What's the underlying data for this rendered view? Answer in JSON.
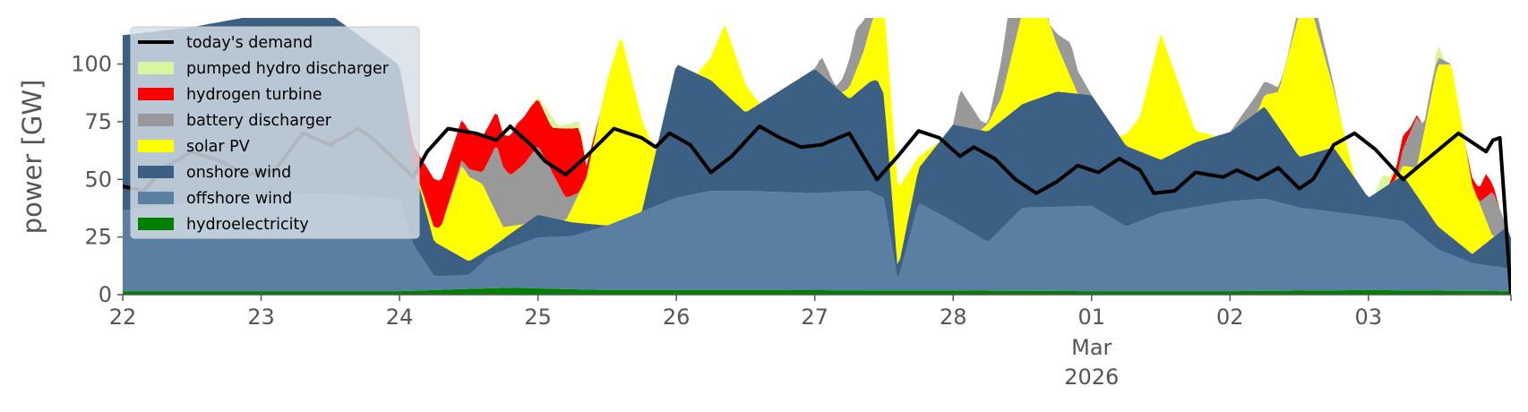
{
  "chart_data": {
    "type": "area",
    "title": "",
    "xlabel": "",
    "ylabel": "power [GW]",
    "ylim": [
      0,
      120
    ],
    "yticks": [
      0,
      25,
      50,
      75,
      100
    ],
    "xlim": [
      0,
      10.03
    ],
    "x_unit": "days from 22 Feb 2026",
    "xticks": [
      {
        "x": 0,
        "label": "22",
        "sub": []
      },
      {
        "x": 1,
        "label": "23",
        "sub": []
      },
      {
        "x": 2,
        "label": "24",
        "sub": []
      },
      {
        "x": 3,
        "label": "25",
        "sub": []
      },
      {
        "x": 4,
        "label": "26",
        "sub": []
      },
      {
        "x": 5,
        "label": "27",
        "sub": []
      },
      {
        "x": 6,
        "label": "28",
        "sub": []
      },
      {
        "x": 7,
        "label": "01",
        "sub": [
          "Mar",
          "2026"
        ]
      },
      {
        "x": 8,
        "label": "02",
        "sub": []
      },
      {
        "x": 9,
        "label": "03",
        "sub": []
      }
    ],
    "grid": false,
    "legend_position": "top-left",
    "stack_order": [
      "hydroelectricity",
      "offshore wind",
      "onshore wind",
      "solar PV",
      "battery discharger",
      "hydrogen turbine",
      "pumped hydro discharger"
    ],
    "series": [
      {
        "name": "hydroelectricity",
        "color": "#008000",
        "x": [
          0,
          2,
          2.5,
          2.8,
          3.5,
          4.5,
          6,
          7,
          8,
          9,
          10,
          10.03
        ],
        "y": [
          1.5,
          1.5,
          2.5,
          3,
          2,
          2,
          1.8,
          1.5,
          1.5,
          2,
          1.5,
          1.5
        ]
      },
      {
        "name": "offshore wind",
        "color": "#5a7fa3",
        "x": [
          0,
          1,
          1.5,
          2,
          2.1,
          2.25,
          2.5,
          2.65,
          3,
          3.25,
          3.5,
          4,
          4.25,
          4.5,
          5,
          5.25,
          5.4,
          5.5,
          5.6,
          5.75,
          6,
          6.25,
          6.5,
          7,
          7.25,
          7.5,
          8,
          8.25,
          8.5,
          9,
          9.25,
          9.5,
          9.75,
          10,
          10.03
        ],
        "y": [
          35,
          42,
          42,
          40,
          20,
          6,
          6,
          14,
          22,
          23,
          28,
          40,
          43,
          43,
          42,
          43,
          43,
          40,
          4,
          38,
          30,
          21,
          36,
          37,
          28,
          34,
          39,
          40,
          36,
          32,
          30,
          18,
          12,
          10,
          10
        ]
      },
      {
        "name": "onshore wind",
        "color": "#3b6084",
        "x": [
          0,
          0.5,
          1,
          1.5,
          2,
          2.1,
          2.25,
          2.5,
          2.65,
          3,
          3.25,
          3.5,
          3.75,
          4,
          4.25,
          4.5,
          5,
          5.25,
          5.45,
          5.5,
          5.6,
          5.75,
          6,
          6.25,
          6.5,
          6.75,
          7,
          7.25,
          7.5,
          7.75,
          8,
          8.25,
          8.5,
          8.75,
          9,
          9.25,
          9.5,
          9.75,
          10,
          10.03
        ],
        "y": [
          76,
          76,
          78,
          78,
          58,
          35,
          15,
          6,
          3,
          10,
          6,
          0,
          0,
          58,
          48,
          34,
          54,
          40,
          50,
          45,
          5,
          15,
          42,
          48,
          45,
          50,
          48,
          35,
          23,
          28,
          30,
          40,
          22,
          28,
          8,
          20,
          10,
          4,
          18,
          13
        ]
      },
      {
        "name": "solar PV",
        "color": "#ffff00",
        "x": [
          0,
          2,
          2.1,
          2.3,
          2.45,
          2.6,
          2.75,
          2.9,
          3,
          3.2,
          3.35,
          3.5,
          3.6,
          3.75,
          3.85,
          4,
          4.15,
          4.25,
          4.35,
          4.6,
          4.8,
          4.9,
          5,
          5.2,
          5.35,
          5.5,
          5.6,
          5.75,
          5.9,
          6,
          6.2,
          6.35,
          6.5,
          6.6,
          6.75,
          6.9,
          7,
          7.2,
          7.35,
          7.5,
          7.6,
          7.75,
          7.9,
          8,
          8.2,
          8.35,
          8.5,
          8.6,
          8.75,
          8.9,
          9,
          9.2,
          9.35,
          9.5,
          9.6,
          9.75,
          9.9,
          10,
          10.03
        ],
        "y": [
          0,
          0,
          0,
          8,
          40,
          30,
          5,
          0,
          0,
          0,
          20,
          63,
          80,
          40,
          0,
          0,
          0,
          10,
          30,
          0,
          0,
          0,
          0,
          0,
          15,
          40,
          35,
          5,
          0,
          0,
          0,
          10,
          40,
          50,
          20,
          0,
          0,
          0,
          15,
          55,
          35,
          5,
          0,
          0,
          0,
          15,
          62,
          60,
          25,
          0,
          0,
          0,
          12,
          70,
          75,
          30,
          0,
          0,
          0
        ]
      },
      {
        "name": "battery discharger",
        "color": "#999999",
        "x": [
          0,
          2,
          2.1,
          2.3,
          2.6,
          2.7,
          2.8,
          3,
          3.3,
          3.5,
          3.9,
          4,
          4.9,
          5,
          5.05,
          5.15,
          5.3,
          5.5,
          5.6,
          5.7,
          6,
          6.05,
          6.25,
          6.4,
          6.7,
          6.85,
          7,
          7.3,
          7.6,
          7.8,
          8,
          8.2,
          8.4,
          8.6,
          8.8,
          9,
          9.2,
          9.35,
          9.4,
          9.45,
          9.6,
          9.8,
          9.9,
          10,
          10.03
        ],
        "y": [
          0,
          0,
          0,
          0,
          5,
          30,
          22,
          30,
          0,
          0,
          0,
          0,
          0,
          0,
          8,
          0,
          18,
          0,
          0,
          0,
          0,
          16,
          0,
          25,
          0,
          15,
          0,
          0,
          0,
          0,
          0,
          8,
          0,
          8,
          0,
          0,
          0,
          22,
          3,
          5,
          0,
          0,
          20,
          0,
          0
        ]
      },
      {
        "name": "hydrogen turbine",
        "color": "#ff0000",
        "x": [
          0,
          2,
          2.1,
          2.25,
          2.4,
          2.55,
          2.75,
          2.85,
          2.95,
          3.1,
          3.2,
          3.3,
          3.35,
          3.45,
          3.6,
          9,
          9.1,
          9.15,
          9.2,
          9.25,
          9.3,
          9.4,
          9.45,
          9.5,
          9.7,
          9.8,
          9.85,
          9.9,
          9.95,
          10.03
        ],
        "y": [
          0,
          0,
          8,
          21,
          18,
          16,
          14,
          20,
          21,
          19,
          30,
          28,
          5,
          0,
          0,
          0,
          0,
          0,
          5,
          6,
          2,
          0,
          0,
          0,
          0,
          6,
          10,
          3,
          0,
          0
        ]
      },
      {
        "name": "pumped hydro discharger",
        "color": "#d9f59d",
        "x": [
          0,
          2.9,
          3,
          3.05,
          3.1,
          3.15,
          3.3,
          3.4,
          9.05,
          9.1,
          9.2,
          9.45,
          9.5,
          9.55,
          10.03
        ],
        "y": [
          0,
          0,
          1,
          3,
          5,
          1,
          3,
          0,
          0,
          6,
          0,
          0,
          6,
          0,
          0
        ]
      },
      {
        "name": "today's demand",
        "color": "#000000",
        "style": "line",
        "x": [
          0,
          0.15,
          0.3,
          0.5,
          0.7,
          0.9,
          1.1,
          1.3,
          1.5,
          1.7,
          1.8,
          2.1,
          2.2,
          2.35,
          2.55,
          2.7,
          2.8,
          2.95,
          3.05,
          3.2,
          3.35,
          3.55,
          3.75,
          3.85,
          3.95,
          4.1,
          4.25,
          4.4,
          4.6,
          4.75,
          4.9,
          5.05,
          5.25,
          5.45,
          5.6,
          5.75,
          5.9,
          6.05,
          6.15,
          6.3,
          6.45,
          6.6,
          6.75,
          6.9,
          7.05,
          7.2,
          7.35,
          7.45,
          7.6,
          7.75,
          7.95,
          8.05,
          8.2,
          8.35,
          8.5,
          8.6,
          8.75,
          8.9,
          9.05,
          9.25,
          9.45,
          9.65,
          9.85,
          9.9,
          9.95,
          10.03
        ],
        "y": [
          47,
          45,
          55,
          62,
          58,
          52,
          54,
          70,
          65,
          72,
          68,
          51,
          62,
          72,
          70,
          67,
          73,
          65,
          58,
          52,
          60,
          72,
          68,
          64,
          70,
          65,
          53,
          60,
          73,
          68,
          64,
          65,
          70,
          50,
          60,
          71,
          68,
          60,
          64,
          59,
          50,
          44,
          49,
          56,
          53,
          59,
          54,
          44,
          45,
          53,
          51,
          54,
          50,
          55,
          46,
          50,
          65,
          70,
          63,
          50,
          60,
          70,
          62,
          67,
          68,
          0
        ]
      }
    ]
  }
}
